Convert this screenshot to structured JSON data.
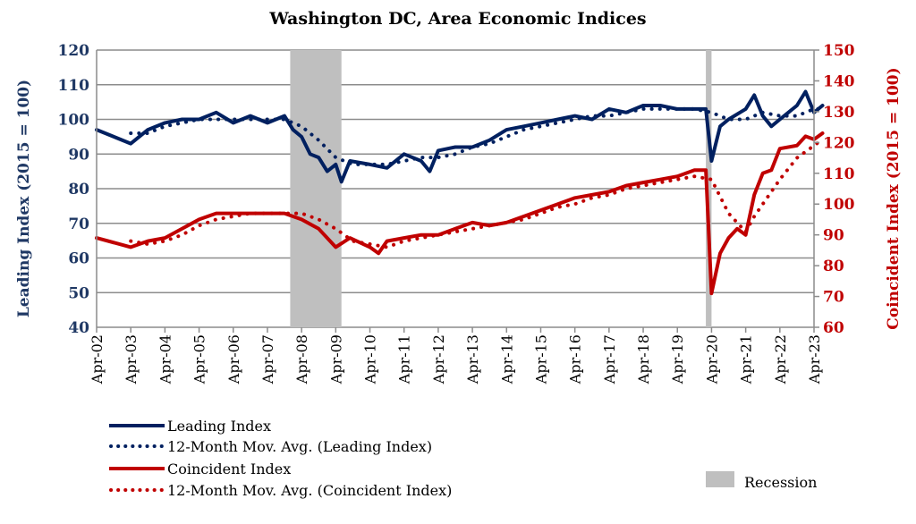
{
  "chart_data": {
    "type": "line",
    "title": "Washington DC, Area Economic Indices",
    "ylabel_left": "Leading Index (2015 = 100)",
    "ylabel_right": "Coincident Index (2015 = 100)",
    "ylim_left": [
      40,
      120
    ],
    "ylim_right": [
      60,
      150
    ],
    "yticks_left": [
      "40",
      "50",
      "60",
      "70",
      "80",
      "90",
      "100",
      "110",
      "120"
    ],
    "yticks_right": [
      "60",
      "70",
      "80",
      "90",
      "100",
      "110",
      "120",
      "130",
      "140",
      "150"
    ],
    "xticks": [
      "Apr-02",
      "Apr-03",
      "Apr-04",
      "Apr-05",
      "Apr-06",
      "Apr-07",
      "Apr-08",
      "Apr-09",
      "Apr-10",
      "Apr-11",
      "Apr-12",
      "Apr-13",
      "Apr-14",
      "Apr-15",
      "Apr-16",
      "Apr-17",
      "Apr-18",
      "Apr-19",
      "Apr-20",
      "Apr-21",
      "Apr-22",
      "Apr-23"
    ],
    "grid": true,
    "legend_position": "bottom",
    "recessions": [
      [
        "2007-12",
        "2009-06"
      ],
      [
        "2020-02",
        "2020-04"
      ]
    ],
    "recession_label": "Recession",
    "colors": {
      "leading": "#002060",
      "coincident": "#C00000",
      "recession": "#BFBFBF"
    },
    "series": [
      {
        "name": "Leading Index",
        "axis": "left",
        "style": "solid",
        "color": "#002060",
        "x": [
          "2002-04",
          "2003-04",
          "2003-10",
          "2004-04",
          "2004-10",
          "2005-04",
          "2005-10",
          "2006-04",
          "2006-10",
          "2007-04",
          "2007-10",
          "2008-01",
          "2008-04",
          "2008-07",
          "2008-10",
          "2009-01",
          "2009-04",
          "2009-06",
          "2009-09",
          "2010-04",
          "2010-10",
          "2011-04",
          "2011-10",
          "2012-01",
          "2012-04",
          "2012-10",
          "2013-04",
          "2013-10",
          "2014-04",
          "2014-10",
          "2015-04",
          "2015-10",
          "2016-04",
          "2016-10",
          "2017-04",
          "2017-10",
          "2018-04",
          "2018-10",
          "2019-04",
          "2019-10",
          "2020-02",
          "2020-04",
          "2020-07",
          "2020-10",
          "2021-04",
          "2021-07",
          "2021-10",
          "2022-01",
          "2022-04",
          "2022-10",
          "2023-01",
          "2023-04",
          "2023-07"
        ],
        "values": [
          97,
          93,
          97,
          99,
          100,
          100,
          102,
          99,
          101,
          99,
          101,
          97,
          95,
          90,
          89,
          85,
          87,
          82,
          88,
          87,
          86,
          90,
          88,
          85,
          91,
          92,
          92,
          94,
          97,
          98,
          99,
          100,
          101,
          100,
          103,
          102,
          104,
          104,
          103,
          103,
          103,
          88,
          98,
          100,
          103,
          107,
          101,
          98,
          100,
          104,
          108,
          102,
          104
        ]
      },
      {
        "name": "12-Month Mov. Avg. (Leading Index)",
        "axis": "left",
        "style": "dotted",
        "color": "#002060",
        "x": [
          "2003-04",
          "2003-10",
          "2004-04",
          "2004-10",
          "2005-04",
          "2005-10",
          "2006-04",
          "2006-10",
          "2007-04",
          "2007-10",
          "2008-04",
          "2008-10",
          "2009-04",
          "2009-10",
          "2010-04",
          "2010-10",
          "2011-04",
          "2011-10",
          "2012-04",
          "2012-10",
          "2013-04",
          "2013-10",
          "2014-04",
          "2014-10",
          "2015-04",
          "2015-10",
          "2016-04",
          "2016-10",
          "2017-04",
          "2017-10",
          "2018-04",
          "2018-10",
          "2019-04",
          "2019-10",
          "2020-04",
          "2020-10",
          "2021-04",
          "2021-10",
          "2022-04",
          "2022-10",
          "2023-04",
          "2023-07"
        ],
        "values": [
          96,
          96,
          98,
          99,
          100,
          100,
          100,
          100,
          100,
          100,
          98,
          94,
          89,
          87,
          87,
          87,
          88,
          89,
          89,
          90,
          92,
          93,
          95,
          97,
          98,
          99,
          100,
          101,
          101,
          102,
          103,
          103,
          103,
          103,
          102,
          100,
          100,
          102,
          101,
          101,
          103,
          103
        ]
      },
      {
        "name": "Coincident Index",
        "axis": "right",
        "style": "solid",
        "color": "#C00000",
        "x": [
          "2002-04",
          "2003-04",
          "2003-10",
          "2004-04",
          "2004-10",
          "2005-04",
          "2005-10",
          "2006-04",
          "2006-10",
          "2007-04",
          "2007-10",
          "2008-04",
          "2008-10",
          "2009-04",
          "2009-09",
          "2010-04",
          "2010-07",
          "2010-10",
          "2011-04",
          "2011-10",
          "2012-04",
          "2012-10",
          "2013-04",
          "2013-10",
          "2014-04",
          "2014-10",
          "2015-04",
          "2015-10",
          "2016-04",
          "2016-10",
          "2017-04",
          "2017-10",
          "2018-04",
          "2018-10",
          "2019-04",
          "2019-10",
          "2020-02",
          "2020-04",
          "2020-07",
          "2020-10",
          "2021-01",
          "2021-04",
          "2021-07",
          "2021-10",
          "2022-01",
          "2022-04",
          "2022-10",
          "2023-01",
          "2023-04",
          "2023-07"
        ],
        "values": [
          89,
          86,
          88,
          89,
          92,
          95,
          97,
          97,
          97,
          97,
          97,
          95,
          92,
          86,
          89,
          86,
          84,
          88,
          89,
          90,
          90,
          92,
          94,
          93,
          94,
          96,
          98,
          100,
          102,
          103,
          104,
          106,
          107,
          108,
          109,
          111,
          111,
          71,
          84,
          89,
          92,
          90,
          103,
          110,
          111,
          118,
          119,
          122,
          121,
          123
        ]
      },
      {
        "name": "12-Month Mov. Avg. (Coincident Index)",
        "axis": "right",
        "style": "dotted",
        "color": "#C00000",
        "x": [
          "2003-04",
          "2003-10",
          "2004-04",
          "2004-10",
          "2005-04",
          "2005-10",
          "2006-04",
          "2006-10",
          "2007-04",
          "2007-10",
          "2008-04",
          "2008-10",
          "2009-04",
          "2009-10",
          "2010-04",
          "2010-10",
          "2011-04",
          "2011-10",
          "2012-04",
          "2012-10",
          "2013-04",
          "2013-10",
          "2014-04",
          "2014-10",
          "2015-04",
          "2015-10",
          "2016-04",
          "2016-10",
          "2017-04",
          "2017-10",
          "2018-04",
          "2018-10",
          "2019-04",
          "2019-10",
          "2020-04",
          "2020-10",
          "2021-04",
          "2021-07",
          "2021-10",
          "2022-04",
          "2022-10",
          "2023-04",
          "2023-07"
        ],
        "values": [
          88,
          87,
          88,
          90,
          93,
          95,
          96,
          97,
          97,
          97,
          97,
          95,
          92,
          88,
          87,
          86,
          88,
          89,
          90,
          91,
          92,
          93,
          94,
          95,
          97,
          99,
          100,
          102,
          103,
          105,
          106,
          107,
          108,
          109,
          108,
          97,
          91,
          96,
          100,
          108,
          115,
          119,
          121
        ]
      }
    ]
  }
}
